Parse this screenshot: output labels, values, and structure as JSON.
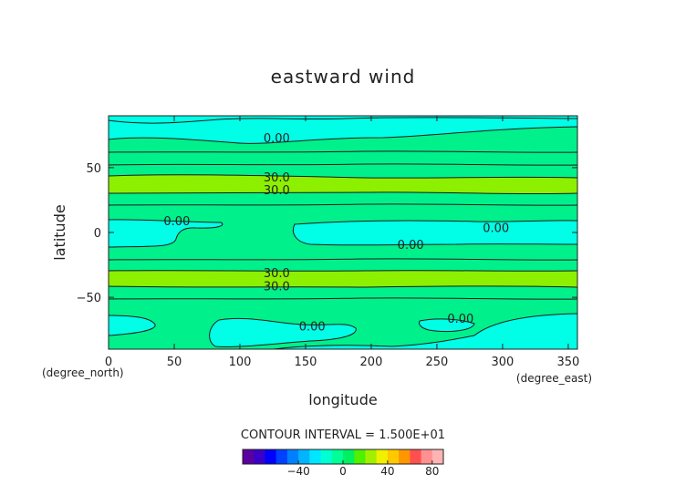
{
  "chart_data": {
    "type": "contour",
    "title": "eastward wind",
    "xlabel": "longitude",
    "ylabel": "latitude",
    "x_unit": "(degree_east)",
    "y_unit": "(degree_north)",
    "xlim": [
      0,
      357
    ],
    "ylim": [
      -90,
      90
    ],
    "x_ticks": [
      0,
      50,
      100,
      150,
      200,
      250,
      300,
      350
    ],
    "y_ticks": [
      -50,
      0,
      50
    ],
    "contour_interval_text": "CONTOUR INTERVAL = 1.500E+01",
    "contour_labels": [
      {
        "text": "0.00",
        "x": 128,
        "y": 73
      },
      {
        "text": "30.0",
        "x": 128,
        "y": 43
      },
      {
        "text": "30.0",
        "x": 128,
        "y": 33
      },
      {
        "text": "0.00",
        "x": 52,
        "y": 9
      },
      {
        "text": "0.00",
        "x": 295,
        "y": 4
      },
      {
        "text": "0.00",
        "x": 230,
        "y": -9
      },
      {
        "text": "30.0",
        "x": 128,
        "y": -31
      },
      {
        "text": "30.0",
        "x": 128,
        "y": -41
      },
      {
        "text": "0.00",
        "x": 155,
        "y": -72
      },
      {
        "text": "0.00",
        "x": 268,
        "y": -66
      }
    ],
    "colorbar": {
      "ticks": [
        "-40",
        "0",
        "40",
        "80"
      ],
      "colors": [
        "#5a00a0",
        "#3b00c8",
        "#0000ff",
        "#0040ff",
        "#0080ff",
        "#00b4ff",
        "#00e6ff",
        "#00ffd2",
        "#00ff96",
        "#00f060",
        "#50f000",
        "#a0f000",
        "#f0f000",
        "#ffc800",
        "#ff9600",
        "#ff5050",
        "#ff9090",
        "#ffb4b4"
      ]
    }
  }
}
